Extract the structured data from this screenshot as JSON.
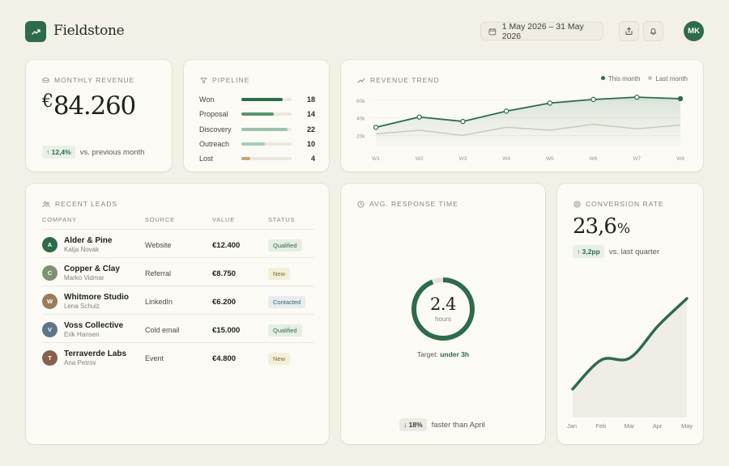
{
  "header": {
    "brand": "Fieldstone",
    "date_range": "1 May 2026 – 31 May 2026",
    "avatar_initials": "MK"
  },
  "monthly_revenue": {
    "title": "MONTHLY REVENUE",
    "currency": "€",
    "value": "84.260",
    "delta": "↑ 12,4%",
    "delta_note": "vs. previous month"
  },
  "pipeline": {
    "title": "PIPELINE",
    "items": [
      {
        "label": "Won",
        "count": "18",
        "fill": 0.82,
        "color": "#2e6b4a"
      },
      {
        "label": "Proposal",
        "count": "14",
        "fill": 0.64,
        "color": "#5b9470"
      },
      {
        "label": "Discovery",
        "count": "22",
        "fill": 0.92,
        "color": "#9cc3ab"
      },
      {
        "label": "Outreach",
        "count": "10",
        "fill": 0.46,
        "color": "#a9cbb7"
      },
      {
        "label": "Lost",
        "count": "4",
        "fill": 0.18,
        "color": "#c7a877"
      }
    ]
  },
  "revenue_trend": {
    "title": "REVENUE TREND",
    "legend_this": "This month",
    "legend_last": "Last month"
  },
  "chart_data": [
    {
      "type": "line",
      "title": "REVENUE TREND",
      "categories": [
        "W1",
        "W2",
        "W3",
        "W4",
        "W5",
        "W6",
        "W7",
        "W8"
      ],
      "y_ticks": [
        "80k",
        "40k",
        "20k"
      ],
      "series": [
        {
          "name": "This month",
          "values": [
            35,
            49,
            43,
            57,
            68,
            73,
            76,
            74
          ],
          "color": "#2e6b4a"
        },
        {
          "name": "Last month",
          "values": [
            26,
            31,
            24,
            35,
            31,
            39,
            33,
            38
          ],
          "color": "#c9c6b8"
        }
      ],
      "ylim": [
        10,
        85
      ],
      "legend": "top-right",
      "grid": true
    },
    {
      "type": "area",
      "title": "CONVERSION RATE",
      "categories": [
        "Jan",
        "Feb",
        "Mar",
        "Apr",
        "May"
      ],
      "series": [
        {
          "values": [
            10.2,
            14.5,
            14.8,
            19.6,
            23.6
          ],
          "color": "#2e6b4a"
        }
      ],
      "ylim": [
        6,
        26
      ],
      "grid": false
    }
  ],
  "recent_leads": {
    "title": "RECENT LEADS",
    "columns": [
      "COMPANY",
      "SOURCE",
      "VALUE",
      "STATUS"
    ],
    "rows": [
      {
        "initial": "A",
        "company": "Alder & Pine",
        "person": "Katja Novak",
        "source": "Website",
        "value": "€12.400",
        "status": "Qualified",
        "status_type": "qualified",
        "color": "#2e6b4a"
      },
      {
        "initial": "C",
        "company": "Copper & Clay",
        "person": "Marko Vidmar",
        "source": "Referral",
        "value": "€8.750",
        "status": "New",
        "status_type": "new",
        "color": "#7d9272"
      },
      {
        "initial": "W",
        "company": "Whitmore Studio",
        "person": "Lena Schulz",
        "source": "LinkedIn",
        "value": "€6.200",
        "status": "Contacted",
        "status_type": "contacted",
        "color": "#9a7c5c"
      },
      {
        "initial": "V",
        "company": "Voss Collective",
        "person": "Erik Hansen",
        "source": "Cold email",
        "value": "€15.000",
        "status": "Qualified",
        "status_type": "qualified",
        "color": "#5f7488"
      },
      {
        "initial": "T",
        "company": "Terraverde Labs",
        "person": "Ana Petrov",
        "source": "Event",
        "value": "€4.800",
        "status": "New",
        "status_type": "new",
        "color": "#8a5f4f"
      }
    ]
  },
  "response_time": {
    "title": "AVG. RESPONSE TIME",
    "value": "2.4",
    "unit": "hours",
    "target_label": "Target:",
    "target_value": "under 3h",
    "progress": 0.94,
    "delta": "↓ 18%",
    "delta_note": "faster than April"
  },
  "conversion_rate": {
    "title": "CONVERSION RATE",
    "value": "23,6",
    "unit": "%",
    "delta": "↑ 3,2pp",
    "delta_note": "vs. last quarter"
  }
}
